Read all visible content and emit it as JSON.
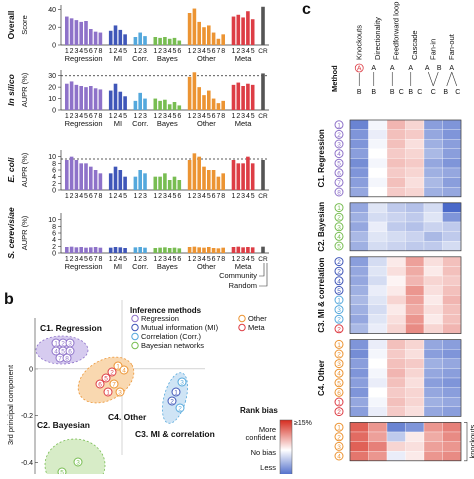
{
  "panels": {
    "a_rows": [
      {
        "label_lines": [
          "Overall"
        ],
        "unit_lines": [
          "Score"
        ],
        "italic": false,
        "yticks": [
          "0",
          "20",
          "40"
        ],
        "ylim": [
          0,
          45
        ],
        "dashed": null
      },
      {
        "label_lines": [
          "In silico"
        ],
        "unit_lines": [
          "AUPR (%)"
        ],
        "italic": true,
        "yticks": [
          "0",
          "10",
          "20",
          "30"
        ],
        "ylim": [
          0,
          35
        ],
        "dashed": 30
      },
      {
        "label_lines": [
          "E. coli"
        ],
        "unit_lines": [
          "AUPR (%)"
        ],
        "italic": true,
        "yticks": [
          "0",
          "2",
          "4",
          "6",
          "8",
          "10"
        ],
        "ylim": [
          0,
          12
        ],
        "dashed": 9.3
      },
      {
        "label_lines": [
          "S. cerevisiae"
        ],
        "unit_lines": [
          "AUPR (%)"
        ],
        "italic": true,
        "yticks": [
          "0",
          "2",
          "4",
          "6",
          "8",
          "10"
        ],
        "ylim": [
          0,
          12
        ],
        "dashed": null
      }
    ],
    "a_groups": [
      {
        "name": "Regression",
        "color": "#8e72c9",
        "ticks": [
          "1",
          "2",
          "3",
          "4",
          "5",
          "6",
          "7",
          "8"
        ]
      },
      {
        "name": "MI",
        "color": "#3f56b8",
        "ticks": [
          "1",
          "2",
          "4",
          "5"
        ]
      },
      {
        "name": "Corr.",
        "color": "#54a8dc",
        "ticks": [
          "1",
          "2",
          "3"
        ]
      },
      {
        "name": "Bayes",
        "color": "#78bd52",
        "ticks": [
          "1",
          "2",
          "3",
          "4",
          "5",
          "6"
        ]
      },
      {
        "name": "Other",
        "color": "#ec9433",
        "ticks": [
          "1",
          "2",
          "3",
          "4",
          "5",
          "6",
          "7",
          "8"
        ]
      },
      {
        "name": "Meta",
        "color": "#dd3d45",
        "ticks": [
          "1",
          "2",
          "3",
          "4",
          "5"
        ]
      },
      {
        "name": "",
        "color": "#555555",
        "ticks": [
          "CR"
        ]
      }
    ],
    "b": {
      "panel_letter": "b",
      "ylabel": "3rd principal component",
      "yticks": [
        "0",
        "-0.2",
        "-0.4"
      ],
      "legend_title": "Inference methods",
      "legend_items": [
        {
          "label": "Regression",
          "color": "#8e72c9"
        },
        {
          "label": "Mutual information (MI)",
          "color": "#3f56b8"
        },
        {
          "label": "Correlation (Corr.)",
          "color": "#54a8dc"
        },
        {
          "label": "Bayesian networks",
          "color": "#78bd52"
        },
        {
          "label": "Other",
          "color": "#ec9433"
        },
        {
          "label": "Meta",
          "color": "#dd3d45"
        }
      ],
      "cluster_labels": [
        "C1. Regression",
        "C2. Bayesian",
        "C4. Other",
        "C3. MI & correlation"
      ],
      "colorbar_title": "Rank bias",
      "colorbar_labels": [
        "More",
        "confident",
        "No bias",
        "Less"
      ],
      "colorbar_top": "≥15%",
      "community_label": "Community",
      "random_label": "Random"
    },
    "c": {
      "panel_letter": "c",
      "method_label": "Method",
      "columns": [
        "Knockouts",
        "Directionality",
        "Feedforward loop",
        "Cascade",
        "Fan-in",
        "Fan-out"
      ],
      "motif_letters": [
        "A",
        "B",
        "C"
      ],
      "cluster_titles": [
        "C1. Regression",
        "C2. Bayesian",
        "C3. MI & correlation",
        "C4. Other"
      ],
      "side_label": "knockouts"
    }
  },
  "chart_data": [
    {
      "type": "bar",
      "title": "Overall",
      "ylabel": "Score",
      "ylim": [
        0,
        45
      ],
      "groups": [
        "Regression",
        "MI",
        "Corr.",
        "Bayes",
        "Other",
        "Meta",
        "CR"
      ],
      "values": [
        [
          32,
          30,
          28,
          26,
          27,
          18,
          15,
          14
        ],
        [
          16,
          22,
          17,
          12
        ],
        [
          9,
          14,
          10
        ],
        [
          9,
          8,
          9,
          7,
          8,
          5
        ],
        [
          36,
          41,
          26,
          20,
          22,
          14,
          7,
          12
        ],
        [
          32,
          34,
          31,
          38,
          29
        ],
        [
          43
        ]
      ]
    },
    {
      "type": "bar",
      "title": "In silico",
      "ylabel": "AUPR (%)",
      "ylim": [
        0,
        35
      ],
      "groups": [
        "Regression",
        "MI",
        "Corr.",
        "Bayes",
        "Other",
        "Meta",
        "CR"
      ],
      "values": [
        [
          23,
          25,
          22,
          21,
          20,
          21,
          19,
          18
        ],
        [
          17,
          23,
          16,
          12
        ],
        [
          8,
          15,
          10
        ],
        [
          10,
          8,
          9,
          5,
          7,
          4
        ],
        [
          29,
          33,
          20,
          13,
          17,
          10,
          6,
          8
        ],
        [
          22,
          24,
          21,
          23,
          22
        ],
        [
          32
        ]
      ]
    },
    {
      "type": "bar",
      "title": "E. coli",
      "ylabel": "AUPR (%)",
      "ylim": [
        0,
        12
      ],
      "groups": [
        "Regression",
        "MI",
        "Corr.",
        "Bayes",
        "Other",
        "Meta",
        "CR"
      ],
      "values": [
        [
          9,
          10,
          9,
          8,
          8,
          7,
          6,
          5
        ],
        [
          5,
          7,
          6,
          4
        ],
        [
          4,
          6,
          5
        ],
        [
          4,
          4,
          5,
          3,
          4,
          3
        ],
        [
          9,
          11,
          10,
          7,
          6,
          6,
          4,
          5
        ],
        [
          9,
          8,
          8,
          10,
          8
        ],
        [
          9
        ]
      ]
    },
    {
      "type": "bar",
      "title": "S. cerevisiae",
      "ylabel": "AUPR (%)",
      "ylim": [
        0,
        12
      ],
      "groups": [
        "Regression",
        "MI",
        "Corr.",
        "Bayes",
        "Other",
        "Meta",
        "CR"
      ],
      "values": [
        [
          1.8,
          1.9,
          1.7,
          1.8,
          1.6,
          1.7,
          1.8,
          1.6
        ],
        [
          1.6,
          1.8,
          1.7,
          1.5
        ],
        [
          1.7,
          1.8,
          1.6
        ],
        [
          1.5,
          1.6,
          1.7,
          1.5,
          1.6,
          1.4
        ],
        [
          1.8,
          1.9,
          1.7,
          1.6,
          1.8,
          1.5,
          1.4,
          1.6
        ],
        [
          1.8,
          1.9,
          1.7,
          1.8,
          1.7
        ],
        [
          1.9
        ]
      ]
    },
    {
      "type": "scatter",
      "ylabel": "3rd principal component",
      "ylim": [
        -0.5,
        0.2
      ],
      "points": [
        {
          "g": "Regression",
          "n": "1",
          "x": 0.2,
          "y": 0.12
        },
        {
          "g": "Regression",
          "n": "2",
          "x": 0.28,
          "y": 0.11
        },
        {
          "g": "Regression",
          "n": "3",
          "x": 0.36,
          "y": 0.12
        },
        {
          "g": "Regression",
          "n": "4",
          "x": 0.44,
          "y": 0.11
        },
        {
          "g": "Regression",
          "n": "5",
          "x": 0.16,
          "y": 0.08
        },
        {
          "g": "Regression",
          "n": "6",
          "x": 0.24,
          "y": 0.07
        },
        {
          "g": "Regression",
          "n": "7",
          "x": 0.33,
          "y": 0.08
        },
        {
          "g": "Regression",
          "n": "8",
          "x": 0.41,
          "y": 0.07
        },
        {
          "g": "Other",
          "n": "1",
          "x": 1.1,
          "y": 0.03
        },
        {
          "g": "Meta",
          "n": "2",
          "x": 1.2,
          "y": 0.02
        },
        {
          "g": "Other",
          "n": "4",
          "x": 1.3,
          "y": 0.04
        },
        {
          "g": "Meta",
          "n": "5",
          "x": 1.4,
          "y": 0.0
        },
        {
          "g": "Meta",
          "n": "6",
          "x": 1.0,
          "y": -0.02
        },
        {
          "g": "Other",
          "n": "7",
          "x": 1.15,
          "y": -0.04
        },
        {
          "g": "Meta",
          "n": "1",
          "x": 1.25,
          "y": -0.06
        },
        {
          "g": "Other",
          "n": "3",
          "x": 1.45,
          "y": -0.09
        },
        {
          "g": "Corr.",
          "n": "3",
          "x": 2.1,
          "y": -0.05
        },
        {
          "g": "MI",
          "n": "1",
          "x": 2.15,
          "y": -0.08
        },
        {
          "g": "MI",
          "n": "2",
          "x": 2.05,
          "y": -0.1
        },
        {
          "g": "Corr.",
          "n": "2",
          "x": 2.1,
          "y": -0.14
        },
        {
          "g": "Bayes",
          "n": "3",
          "x": 0.9,
          "y": -0.36
        },
        {
          "g": "Bayes",
          "n": "5",
          "x": 0.75,
          "y": -0.45
        }
      ]
    },
    {
      "type": "heatmap",
      "title": "Rank bias",
      "columns": [
        "Knockouts",
        "Directionality",
        "Feedforward loop",
        "Cascade",
        "Fan-in",
        "Fan-out"
      ],
      "clusters": [
        {
          "name": "C1. Regression",
          "rows": [
            {
              "m": "1",
              "g": "Regression",
              "v": [
                -0.7,
                -0.05,
                0.35,
                0.2,
                -0.55,
                -0.6
              ]
            },
            {
              "m": "2",
              "g": "Regression",
              "v": [
                -0.6,
                -0.1,
                0.3,
                0.25,
                -0.5,
                -0.6
              ]
            },
            {
              "m": "3",
              "g": "Regression",
              "v": [
                -0.6,
                -0.05,
                0.3,
                0.15,
                -0.45,
                -0.55
              ]
            },
            {
              "m": "4",
              "g": "Regression",
              "v": [
                -0.55,
                0.0,
                0.25,
                0.2,
                -0.4,
                -0.55
              ]
            },
            {
              "m": "5",
              "g": "Regression",
              "v": [
                -0.65,
                -0.05,
                0.3,
                0.25,
                -0.5,
                -0.6
              ]
            },
            {
              "m": "6",
              "g": "Regression",
              "v": [
                -0.6,
                0.0,
                0.25,
                0.2,
                -0.45,
                -0.5
              ]
            },
            {
              "m": "7",
              "g": "Regression",
              "v": [
                -0.55,
                -0.05,
                0.3,
                0.15,
                -0.4,
                -0.55
              ]
            },
            {
              "m": "8",
              "g": "Regression",
              "v": [
                -0.5,
                0.0,
                0.25,
                0.2,
                -0.45,
                -0.5
              ]
            }
          ]
        },
        {
          "name": "C2. Bayesian",
          "rows": [
            {
              "m": "1",
              "g": "Bayes",
              "v": [
                -0.5,
                -0.15,
                -0.3,
                -0.35,
                -0.2,
                -0.85
              ]
            },
            {
              "m": "2",
              "g": "Bayes",
              "v": [
                -0.45,
                -0.2,
                -0.25,
                -0.3,
                -0.15,
                -0.6
              ]
            },
            {
              "m": "3",
              "g": "Bayes",
              "v": [
                -0.5,
                -0.1,
                -0.3,
                -0.35,
                -0.25,
                -0.3
              ]
            },
            {
              "m": "4",
              "g": "Bayes",
              "v": [
                -0.4,
                -0.15,
                -0.2,
                -0.25,
                -0.4,
                -0.3
              ]
            },
            {
              "m": "5",
              "g": "Bayes",
              "v": [
                -0.45,
                -0.2,
                -0.25,
                -0.3,
                -0.3,
                -0.2
              ]
            }
          ]
        },
        {
          "name": "C3. MI & correlation",
          "rows": [
            {
              "m": "2",
              "g": "MI",
              "v": [
                -0.55,
                -0.2,
                0.1,
                0.45,
                0.15,
                0.3
              ]
            },
            {
              "m": "2",
              "g": "MI",
              "v": [
                -0.5,
                -0.15,
                0.15,
                0.4,
                0.1,
                0.3
              ]
            },
            {
              "m": "4",
              "g": "MI",
              "v": [
                -0.5,
                -0.2,
                0.05,
                0.35,
                0.2,
                0.25
              ]
            },
            {
              "m": "5",
              "g": "MI",
              "v": [
                -0.45,
                -0.1,
                0.1,
                0.5,
                0.15,
                0.3
              ]
            },
            {
              "m": "1",
              "g": "Corr.",
              "v": [
                -0.4,
                -0.15,
                0.2,
                0.45,
                0.1,
                0.35
              ]
            },
            {
              "m": "3",
              "g": "Corr.",
              "v": [
                -0.45,
                -0.2,
                0.1,
                0.4,
                0.15,
                0.3
              ]
            },
            {
              "m": "2",
              "g": "Corr.",
              "v": [
                -0.5,
                -0.15,
                0.15,
                0.5,
                0.1,
                0.3
              ]
            },
            {
              "m": "2",
              "g": "Meta",
              "v": [
                -0.4,
                -0.1,
                0.2,
                0.55,
                0.2,
                0.35
              ]
            }
          ]
        },
        {
          "name": "C4. Other",
          "rows": [
            {
              "m": "1",
              "g": "Other",
              "v": [
                -0.6,
                -0.1,
                0.3,
                0.2,
                -0.5,
                -0.55
              ]
            },
            {
              "m": "2",
              "g": "Other",
              "v": [
                -0.65,
                -0.05,
                0.25,
                0.15,
                -0.55,
                -0.6
              ]
            },
            {
              "m": "3",
              "g": "Other",
              "v": [
                -0.55,
                0.0,
                0.3,
                0.25,
                -0.45,
                -0.5
              ]
            },
            {
              "m": "4",
              "g": "Other",
              "v": [
                -0.6,
                -0.05,
                0.35,
                0.2,
                -0.5,
                -0.55
              ]
            },
            {
              "m": "5",
              "g": "Other",
              "v": [
                -0.55,
                -0.1,
                0.3,
                0.15,
                -0.55,
                -0.6
              ]
            },
            {
              "m": "6",
              "g": "Other",
              "v": [
                -0.6,
                0.0,
                0.25,
                0.2,
                -0.5,
                -0.55
              ]
            },
            {
              "m": "1",
              "g": "Meta",
              "v": [
                -0.5,
                -0.05,
                0.3,
                0.2,
                -0.45,
                -0.5
              ]
            },
            {
              "m": "2",
              "g": "Meta",
              "v": [
                -0.55,
                -0.1,
                0.25,
                0.15,
                -0.5,
                -0.55
              ]
            }
          ]
        },
        {
          "name": "",
          "rows": [
            {
              "m": "1",
              "g": "Other",
              "v": [
                0.75,
                0.5,
                -0.7,
                -0.6,
                0.5,
                0.6
              ]
            },
            {
              "m": "2",
              "g": "Other",
              "v": [
                0.7,
                0.45,
                -0.3,
                0.1,
                0.4,
                0.55
              ]
            },
            {
              "m": "3",
              "g": "Other",
              "v": [
                0.75,
                0.6,
                0.2,
                0.15,
                0.45,
                0.5
              ]
            },
            {
              "m": "4",
              "g": "Other",
              "v": [
                0.65,
                0.5,
                -0.1,
                0.1,
                0.5,
                0.55
              ]
            }
          ]
        }
      ]
    }
  ]
}
